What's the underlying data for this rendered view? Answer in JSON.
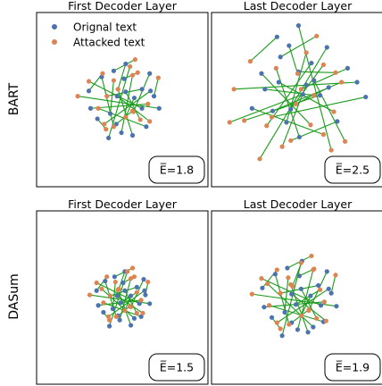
{
  "legend": {
    "entries": [
      {
        "label": "Orignal text",
        "color": "#4c72b0"
      },
      {
        "label": "Attacked text",
        "color": "#dd8452"
      }
    ],
    "placement": "top-left of first panel"
  },
  "line_color": "#1a9a1a",
  "chart_data": [
    {
      "type": "scatter",
      "row": "BART",
      "title": "First Decoder Layer",
      "annotation": "E̅=1.8",
      "xlim": [
        -1,
        1
      ],
      "ylim": [
        -1,
        1
      ],
      "grid": false,
      "pairs": [
        [
          [
            -0.16,
            -0.44
          ],
          [
            0.09,
            0.38
          ]
        ],
        [
          [
            -0.01,
            -0.38
          ],
          [
            0.12,
            0.28
          ]
        ],
        [
          [
            0.12,
            -0.41
          ],
          [
            -0.05,
            0.12
          ]
        ],
        [
          [
            0.28,
            -0.31
          ],
          [
            -0.28,
            -0.1
          ]
        ],
        [
          [
            0.23,
            -0.1
          ],
          [
            -0.39,
            0.21
          ]
        ],
        [
          [
            0.23,
            0.12
          ],
          [
            -0.18,
            0.04
          ]
        ],
        [
          [
            0.33,
            0.1
          ],
          [
            -0.21,
            -0.28
          ]
        ],
        [
          [
            0.43,
            -0.1
          ],
          [
            -0.52,
            0.04
          ]
        ],
        [
          [
            0.32,
            0.3
          ],
          [
            0.13,
            -0.14
          ]
        ],
        [
          [
            0.14,
            0.02
          ],
          [
            0.04,
            -0.2
          ]
        ],
        [
          [
            0.04,
            0.09
          ],
          [
            0.21,
            -0.23
          ]
        ],
        [
          [
            -0.06,
            0.04
          ],
          [
            0.32,
            -0.25
          ]
        ],
        [
          [
            -0.24,
            0.26
          ],
          [
            -0.1,
            -0.31
          ]
        ],
        [
          [
            -0.37,
            -0.1
          ],
          [
            0.3,
            -0.05
          ]
        ],
        [
          [
            -0.39,
            0.1
          ],
          [
            -0.23,
            0.3
          ]
        ],
        [
          [
            -0.14,
            -0.16
          ],
          [
            -0.1,
            0.22
          ]
        ],
        [
          [
            0.02,
            0.24
          ],
          [
            0.18,
            0.31
          ]
        ],
        [
          [
            -0.1,
            0.33
          ],
          [
            0.15,
            0.46
          ]
        ],
        [
          [
            0.37,
            0.04
          ],
          [
            0.42,
            0.25
          ]
        ],
        [
          [
            -0.07,
            -0.28
          ],
          [
            0.12,
            -0.13
          ]
        ],
        [
          [
            0.04,
            0.41
          ],
          [
            -0.05,
            0.12
          ]
        ],
        [
          [
            -0.29,
            -0.22
          ],
          [
            -0.19,
            -0.34
          ]
        ]
      ]
    },
    {
      "type": "scatter",
      "row": "BART",
      "title": "Last Decoder Layer",
      "annotation": "E̅=2.5",
      "xlim": [
        -1,
        1
      ],
      "ylim": [
        -1,
        1
      ],
      "grid": false,
      "pairs": [
        [
          [
            -0.24,
            0.72
          ],
          [
            -0.55,
            0.44
          ]
        ],
        [
          [
            0.01,
            0.85
          ],
          [
            0.39,
            -0.58
          ]
        ],
        [
          [
            -0.38,
            0.12
          ],
          [
            0.19,
            0.05
          ]
        ],
        [
          [
            0.16,
            0.42
          ],
          [
            -0.36,
            -0.3
          ]
        ],
        [
          [
            0.01,
            0.32
          ],
          [
            0.44,
            0.31
          ]
        ],
        [
          [
            -0.22,
            0.2
          ],
          [
            0.42,
            -0.14
          ]
        ],
        [
          [
            0.26,
            0.05
          ],
          [
            -0.62,
            -0.24
          ]
        ],
        [
          [
            -0.29,
            -0.13
          ],
          [
            0.51,
            0.2
          ]
        ],
        [
          [
            0.06,
            0.06
          ],
          [
            -0.79,
            -0.26
          ]
        ],
        [
          [
            0.34,
            0.6
          ],
          [
            -0.44,
            -0.68
          ]
        ],
        [
          [
            -0.42,
            0.3
          ],
          [
            0.15,
            -0.29
          ]
        ],
        [
          [
            -0.13,
            -0.26
          ],
          [
            0.1,
            0.54
          ]
        ],
        [
          [
            0.46,
            -0.25
          ],
          [
            -0.08,
            -0.47
          ]
        ],
        [
          [
            -0.53,
            -0.1
          ],
          [
            0.3,
            -0.4
          ]
        ],
        [
          [
            0.02,
            -0.43
          ],
          [
            -0.25,
            0.36
          ]
        ],
        [
          [
            0.69,
            0.2
          ],
          [
            -0.74,
            0.12
          ]
        ],
        [
          [
            0.19,
            0.22
          ],
          [
            0.55,
            -0.48
          ]
        ],
        [
          [
            0.1,
            0.17
          ],
          [
            -0.18,
            -0.54
          ]
        ],
        [
          [
            -0.08,
            -0.11
          ],
          [
            0.3,
            0.4
          ]
        ],
        [
          [
            0.36,
            0.14
          ],
          [
            -0.02,
            -0.05
          ]
        ],
        [
          [
            0.79,
            0.03
          ],
          [
            -0.3,
            -0.2
          ]
        ],
        [
          [
            -0.2,
            0.49
          ],
          [
            0.22,
            0.73
          ]
        ],
        [
          [
            0.58,
            0.36
          ],
          [
            0.04,
            0.12
          ]
        ],
        [
          [
            -0.1,
            0.62
          ],
          [
            0.0,
            0.3
          ]
        ]
      ]
    },
    {
      "type": "scatter",
      "row": "DASum",
      "title": "First Decoder Layer",
      "annotation": "E̅=1.5",
      "xlim": [
        -1,
        1
      ],
      "ylim": [
        -1,
        1
      ],
      "grid": false,
      "pairs": [
        [
          [
            -0.15,
            -0.33
          ],
          [
            0.06,
            0.3
          ]
        ],
        [
          [
            -0.03,
            -0.26
          ],
          [
            0.1,
            0.22
          ]
        ],
        [
          [
            0.1,
            -0.32
          ],
          [
            -0.05,
            0.09
          ]
        ],
        [
          [
            0.22,
            -0.22
          ],
          [
            -0.22,
            -0.06
          ]
        ],
        [
          [
            0.2,
            -0.07
          ],
          [
            -0.3,
            0.17
          ]
        ],
        [
          [
            0.17,
            0.12
          ],
          [
            -0.14,
            0.02
          ]
        ],
        [
          [
            0.26,
            0.08
          ],
          [
            -0.16,
            -0.22
          ]
        ],
        [
          [
            0.32,
            -0.07
          ],
          [
            -0.38,
            0.03
          ]
        ],
        [
          [
            0.25,
            0.21
          ],
          [
            0.1,
            -0.11
          ]
        ],
        [
          [
            0.1,
            0.02
          ],
          [
            0.03,
            -0.15
          ]
        ],
        [
          [
            0.03,
            0.08
          ],
          [
            0.17,
            -0.18
          ]
        ],
        [
          [
            -0.06,
            0.02
          ],
          [
            0.24,
            -0.18
          ]
        ],
        [
          [
            -0.2,
            0.19
          ],
          [
            -0.07,
            -0.22
          ]
        ],
        [
          [
            -0.28,
            -0.09
          ],
          [
            0.22,
            -0.03
          ]
        ],
        [
          [
            -0.3,
            0.08
          ],
          [
            -0.18,
            0.24
          ]
        ],
        [
          [
            -0.11,
            -0.13
          ],
          [
            -0.08,
            0.18
          ]
        ],
        [
          [
            0.01,
            0.17
          ],
          [
            0.14,
            0.24
          ]
        ],
        [
          [
            -0.09,
            0.24
          ],
          [
            0.12,
            0.34
          ]
        ],
        [
          [
            0.27,
            0.03
          ],
          [
            0.3,
            0.18
          ]
        ],
        [
          [
            -0.05,
            -0.21
          ],
          [
            0.09,
            -0.1
          ]
        ],
        [
          [
            0.03,
            0.3
          ],
          [
            -0.04,
            0.1
          ]
        ],
        [
          [
            -0.22,
            -0.17
          ],
          [
            -0.15,
            -0.26
          ]
        ],
        [
          [
            0.14,
            -0.24
          ],
          [
            -0.24,
            0.1
          ]
        ],
        [
          [
            -0.02,
            -0.06
          ],
          [
            0.17,
            0.06
          ]
        ]
      ]
    },
    {
      "type": "scatter",
      "row": "DASum",
      "title": "Last Decoder Layer",
      "annotation": "E̅=1.9",
      "xlim": [
        -1,
        1
      ],
      "ylim": [
        -1,
        1
      ],
      "grid": false,
      "pairs": [
        [
          [
            -0.18,
            -0.44
          ],
          [
            0.04,
            0.4
          ]
        ],
        [
          [
            0.0,
            -0.37
          ],
          [
            0.18,
            0.32
          ]
        ],
        [
          [
            0.12,
            -0.4
          ],
          [
            -0.08,
            0.15
          ]
        ],
        [
          [
            0.3,
            -0.28
          ],
          [
            -0.33,
            -0.09
          ]
        ],
        [
          [
            0.27,
            -0.09
          ],
          [
            -0.42,
            0.22
          ]
        ],
        [
          [
            0.24,
            0.14
          ],
          [
            -0.2,
            0.05
          ]
        ],
        [
          [
            0.36,
            0.1
          ],
          [
            -0.24,
            -0.29
          ]
        ],
        [
          [
            0.45,
            -0.1
          ],
          [
            -0.53,
            0.04
          ]
        ],
        [
          [
            0.34,
            0.3
          ],
          [
            0.13,
            -0.15
          ]
        ],
        [
          [
            0.15,
            0.02
          ],
          [
            0.04,
            -0.21
          ]
        ],
        [
          [
            0.04,
            0.1
          ],
          [
            0.22,
            -0.24
          ]
        ],
        [
          [
            -0.07,
            0.04
          ],
          [
            0.33,
            -0.27
          ]
        ],
        [
          [
            -0.26,
            0.27
          ],
          [
            -0.1,
            -0.31
          ]
        ],
        [
          [
            -0.39,
            -0.11
          ],
          [
            0.31,
            -0.05
          ]
        ],
        [
          [
            -0.41,
            0.11
          ],
          [
            -0.24,
            0.32
          ]
        ],
        [
          [
            -0.15,
            -0.17
          ],
          [
            -0.11,
            0.23
          ]
        ],
        [
          [
            0.02,
            0.25
          ],
          [
            0.19,
            0.33
          ]
        ],
        [
          [
            -0.12,
            0.34
          ],
          [
            0.16,
            0.48
          ]
        ],
        [
          [
            0.39,
            0.05
          ],
          [
            0.44,
            0.26
          ]
        ],
        [
          [
            -0.07,
            -0.29
          ],
          [
            0.13,
            -0.14
          ]
        ],
        [
          [
            0.05,
            0.42
          ],
          [
            -0.06,
            0.13
          ]
        ],
        [
          [
            -0.3,
            -0.23
          ],
          [
            -0.2,
            -0.36
          ]
        ],
        [
          [
            0.18,
            -0.34
          ],
          [
            -0.35,
            0.16
          ]
        ],
        [
          [
            -0.02,
            -0.08
          ],
          [
            0.26,
            0.09
          ]
        ]
      ]
    }
  ]
}
